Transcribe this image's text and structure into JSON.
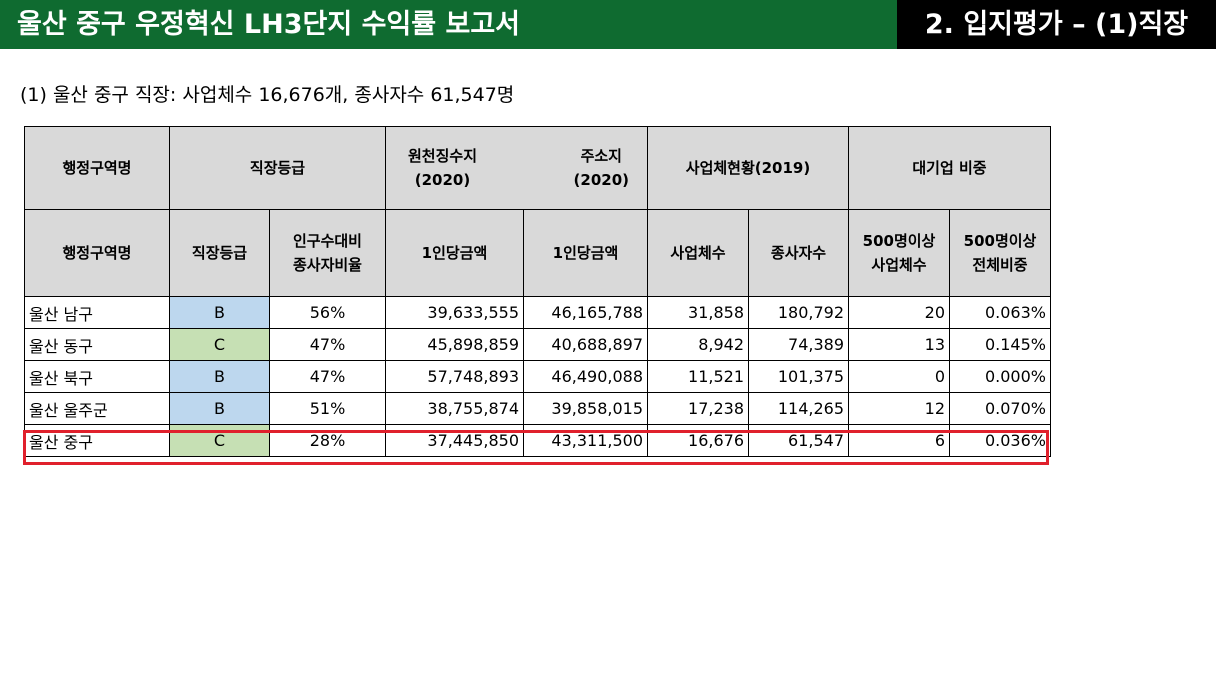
{
  "header": {
    "title": "울산 중구 우정혁신 LH3단지 수익률 보고서",
    "section": "2. 입지평가 – (1)직장",
    "bg_color": "#0f6b30"
  },
  "subtitle": "(1) 울산 중구 직장: 사업체수 16,676개, 종사자수 61,547명",
  "table": {
    "header_row1": {
      "district": "행정구역명",
      "grade": "직장등급",
      "withholding": "원천징수지",
      "withholding_year": "(2020)",
      "address": "주소지",
      "address_year": "(2020)",
      "business": "사업체현황(2019)",
      "large": "대기업 비중"
    },
    "header_row2": {
      "district": "행정구역명",
      "grade": "직장등급",
      "ratio_line1": "인구수대비",
      "ratio_line2": "종사자비율",
      "per_capita_1": "1인당금액",
      "per_capita_2": "1인당금액",
      "biz_count": "사업체수",
      "employees": "종사자수",
      "large_count_line1": "500명이상",
      "large_count_line2": "사업체수",
      "large_share_line1": "500명이상",
      "large_share_line2": "전체비중"
    },
    "rows": [
      {
        "district": "울산 남구",
        "grade": "B",
        "ratio": "56%",
        "withholding": "39,633,555",
        "address": "46,165,788",
        "biz": "31,858",
        "emp": "180,792",
        "large_cnt": "20",
        "large_share": "0.063%"
      },
      {
        "district": "울산 동구",
        "grade": "C",
        "ratio": "47%",
        "withholding": "45,898,859",
        "address": "40,688,897",
        "biz": "8,942",
        "emp": "74,389",
        "large_cnt": "13",
        "large_share": "0.145%"
      },
      {
        "district": "울산 북구",
        "grade": "B",
        "ratio": "47%",
        "withholding": "57,748,893",
        "address": "46,490,088",
        "biz": "11,521",
        "emp": "101,375",
        "large_cnt": "0",
        "large_share": "0.000%"
      },
      {
        "district": "울산 울주군",
        "grade": "B",
        "ratio": "51%",
        "withholding": "38,755,874",
        "address": "39,858,015",
        "biz": "17,238",
        "emp": "114,265",
        "large_cnt": "12",
        "large_share": "0.070%"
      },
      {
        "district": "울산 중구",
        "grade": "C",
        "ratio": "28%",
        "withholding": "37,445,850",
        "address": "43,311,500",
        "biz": "16,676",
        "emp": "61,547",
        "large_cnt": "6",
        "large_share": "0.036%"
      }
    ],
    "grade_colors": {
      "B": "#bdd7ee",
      "C": "#c6e0b4"
    },
    "highlight_color": "#e0202c"
  }
}
